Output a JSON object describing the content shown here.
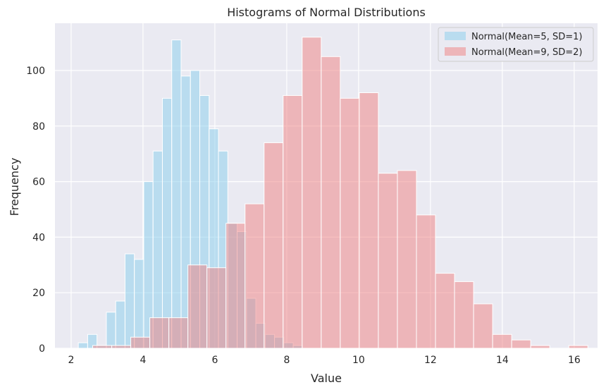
{
  "chart_data": {
    "type": "histogram",
    "title": "Histograms of Normal Distributions",
    "xlabel": "Value",
    "ylabel": "Frequency",
    "xlim": [
      1.55,
      16.65
    ],
    "ylim": [
      0,
      117
    ],
    "xticks": [
      2,
      4,
      6,
      8,
      10,
      12,
      14,
      16
    ],
    "yticks": [
      0,
      20,
      40,
      60,
      80,
      100
    ],
    "grid": true,
    "legend_position": "top-right",
    "series": [
      {
        "name": "Normal(Mean=5, SD=1)",
        "color": "#87ceeb",
        "bins": [
          {
            "x0": 2.2,
            "x1": 2.46,
            "count": 2
          },
          {
            "x0": 2.46,
            "x1": 2.72,
            "count": 5
          },
          {
            "x0": 2.72,
            "x1": 2.98,
            "count": 1
          },
          {
            "x0": 2.98,
            "x1": 3.24,
            "count": 13
          },
          {
            "x0": 3.24,
            "x1": 3.5,
            "count": 17
          },
          {
            "x0": 3.5,
            "x1": 3.76,
            "count": 34
          },
          {
            "x0": 3.76,
            "x1": 4.02,
            "count": 32
          },
          {
            "x0": 4.02,
            "x1": 4.28,
            "count": 60
          },
          {
            "x0": 4.28,
            "x1": 4.54,
            "count": 71
          },
          {
            "x0": 4.54,
            "x1": 4.8,
            "count": 90
          },
          {
            "x0": 4.8,
            "x1": 5.06,
            "count": 111
          },
          {
            "x0": 5.06,
            "x1": 5.32,
            "count": 98
          },
          {
            "x0": 5.32,
            "x1": 5.58,
            "count": 100
          },
          {
            "x0": 5.58,
            "x1": 5.84,
            "count": 91
          },
          {
            "x0": 5.84,
            "x1": 6.1,
            "count": 79
          },
          {
            "x0": 6.1,
            "x1": 6.36,
            "count": 71
          },
          {
            "x0": 6.36,
            "x1": 6.62,
            "count": 45
          },
          {
            "x0": 6.62,
            "x1": 6.88,
            "count": 42
          },
          {
            "x0": 6.88,
            "x1": 7.14,
            "count": 18
          },
          {
            "x0": 7.14,
            "x1": 7.4,
            "count": 9
          },
          {
            "x0": 7.4,
            "x1": 7.66,
            "count": 5
          },
          {
            "x0": 7.66,
            "x1": 7.92,
            "count": 4
          },
          {
            "x0": 7.92,
            "x1": 8.18,
            "count": 2
          },
          {
            "x0": 8.18,
            "x1": 8.44,
            "count": 1
          }
        ]
      },
      {
        "name": "Normal(Mean=9, SD=2)",
        "color": "#f08080",
        "bins": [
          {
            "x0": 2.6,
            "x1": 3.13,
            "count": 1
          },
          {
            "x0": 3.13,
            "x1": 3.66,
            "count": 1
          },
          {
            "x0": 3.66,
            "x1": 4.19,
            "count": 4
          },
          {
            "x0": 4.19,
            "x1": 4.72,
            "count": 11
          },
          {
            "x0": 4.72,
            "x1": 5.25,
            "count": 11
          },
          {
            "x0": 5.25,
            "x1": 5.78,
            "count": 30
          },
          {
            "x0": 5.78,
            "x1": 6.31,
            "count": 29
          },
          {
            "x0": 6.31,
            "x1": 6.84,
            "count": 45
          },
          {
            "x0": 6.84,
            "x1": 7.37,
            "count": 52
          },
          {
            "x0": 7.37,
            "x1": 7.9,
            "count": 74
          },
          {
            "x0": 7.9,
            "x1": 8.43,
            "count": 91
          },
          {
            "x0": 8.43,
            "x1": 8.96,
            "count": 112
          },
          {
            "x0": 8.96,
            "x1": 9.49,
            "count": 105
          },
          {
            "x0": 9.49,
            "x1": 10.02,
            "count": 90
          },
          {
            "x0": 10.02,
            "x1": 10.55,
            "count": 92
          },
          {
            "x0": 10.55,
            "x1": 11.08,
            "count": 63
          },
          {
            "x0": 11.08,
            "x1": 11.61,
            "count": 64
          },
          {
            "x0": 11.61,
            "x1": 12.14,
            "count": 48
          },
          {
            "x0": 12.14,
            "x1": 12.67,
            "count": 27
          },
          {
            "x0": 12.67,
            "x1": 13.2,
            "count": 24
          },
          {
            "x0": 13.2,
            "x1": 13.73,
            "count": 16
          },
          {
            "x0": 13.73,
            "x1": 14.26,
            "count": 5
          },
          {
            "x0": 14.26,
            "x1": 14.79,
            "count": 3
          },
          {
            "x0": 14.79,
            "x1": 15.32,
            "count": 1
          },
          {
            "x0": 15.32,
            "x1": 15.85,
            "count": 0
          },
          {
            "x0": 15.85,
            "x1": 16.38,
            "count": 1
          }
        ]
      }
    ]
  }
}
